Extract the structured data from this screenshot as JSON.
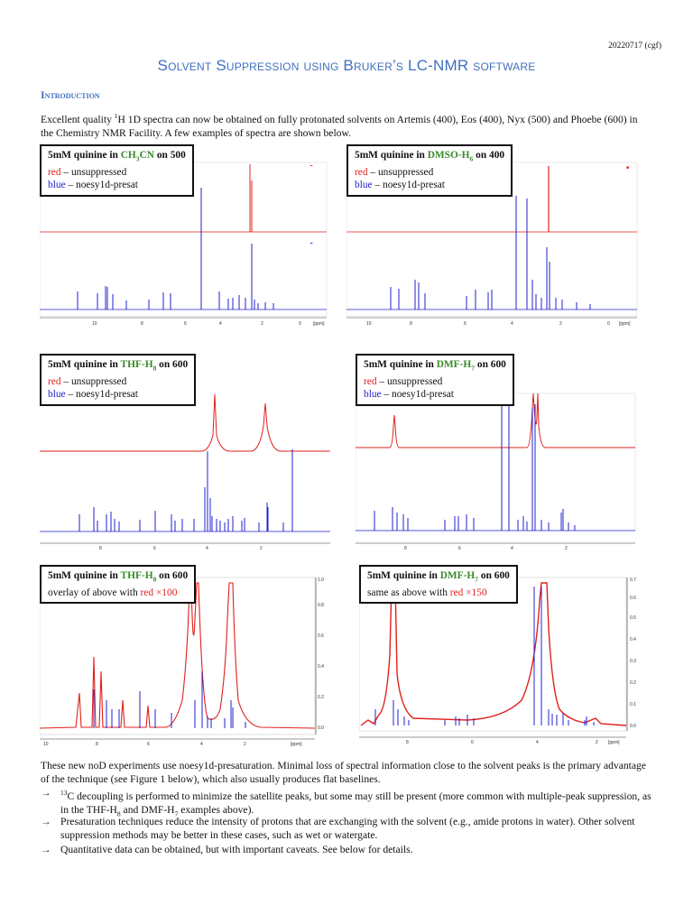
{
  "header": {
    "date": "20220717 (cgf)",
    "title": "Solvent Suppression using Bruker’s LC-NMR software",
    "section": "Introduction"
  },
  "intro": {
    "text_a": "Excellent quality ",
    "sup": "1",
    "text_b": "H 1D spectra can now be obtained on fully protonated solvents on Artemis (400), Eos (400), Nyx (500) and Phoebe (600) in the Chemistry NMR Facility. A few examples of spectra are shown below."
  },
  "colors": {
    "red": "#e0201c",
    "blue": "#2020d0",
    "green": "#3a8a2a",
    "accent": "#3f6fbf"
  },
  "panels": [
    {
      "pre": "5mM quinine in ",
      "solvent": "CH",
      "sub1": "3",
      "solvent2": "CN",
      "sub2": "",
      "post": " on 500",
      "line2_color": "red",
      "line2_rest": " – unsuppressed",
      "line3_color": "blue",
      "line3_rest": " – noesy1d-presat"
    },
    {
      "pre": "5mM quinine in ",
      "solvent": "DMSO-H",
      "sub1": "6",
      "solvent2": "",
      "sub2": "",
      "post": " on 400",
      "line2_color": "red",
      "line2_rest": " – unsuppressed",
      "line3_color": "blue",
      "line3_rest": " – noesy1d-presat"
    },
    {
      "pre": "5mM quinine in ",
      "solvent": "THF-H",
      "sub1": "8",
      "solvent2": "",
      "sub2": "",
      "post": " on 600",
      "line2_color": "red",
      "line2_rest": " – unsuppressed",
      "line3_color": "blue",
      "line3_rest": " – noesy1d-presat"
    },
    {
      "pre": "5mM quinine in ",
      "solvent": "DMF-H",
      "sub1": "7",
      "solvent2": "",
      "sub2": "",
      "post": " on 600",
      "line2_color": "red",
      "line2_rest": " – unsuppressed",
      "line3_color": "blue",
      "line3_rest": " – noesy1d-presat"
    },
    {
      "pre": "5mM quinine in ",
      "solvent": "THF-H",
      "sub1": "8",
      "solvent2": "",
      "sub2": "",
      "post": " on 600",
      "line2_text": "overlay of above with ",
      "line2_red": "red ×100"
    },
    {
      "pre": "5mM quinine in ",
      "solvent": "DMF-H",
      "sub1": "7",
      "solvent2": "",
      "sub2": "",
      "post": " on 600",
      "line2_text": "same as above with ",
      "line2_red": "red ×150"
    }
  ],
  "axes": {
    "p1": {
      "ticks": [
        "10",
        "8",
        "6",
        "4",
        "2",
        "0"
      ],
      "unit": "[ppm]"
    },
    "p2": {
      "ticks": [
        "10",
        "8",
        "6",
        "4",
        "2",
        "0"
      ],
      "unit": "[ppm]"
    },
    "p3": {
      "ticks": [
        "8",
        "6",
        "4",
        "2"
      ]
    },
    "p4": {
      "ticks": [
        "8",
        "6",
        "4",
        "2"
      ]
    },
    "p5": {
      "ticks": [
        "10",
        "8",
        "6",
        "4",
        "2"
      ],
      "unit": "[ppm]",
      "yticks": [
        "0.0",
        "0.2",
        "0.4",
        "0.6",
        "0.8",
        "1.0"
      ]
    },
    "p6": {
      "ticks": [
        "8",
        "6",
        "4",
        "2"
      ],
      "unit": "[ppm]",
      "yticks": [
        "0.0",
        "0.1",
        "0.2",
        "0.3",
        "0.4",
        "0.5",
        "0.6",
        "0.7"
      ]
    }
  },
  "body": {
    "para": "These new noD experiments use noesy1d-presaturation. Minimal loss of spectral information close to the solvent peaks is the primary advantage of the technique (see Figure 1 below), which also usually produces flat baselines.",
    "arrow": "→",
    "b1_sup": "13",
    "b1": "C decoupling is performed to minimize the satellite peaks, but some may still be present (more common with multiple-peak suppression, as in the THF-H",
    "b1_sub1": "8",
    "b1_mid": " and DMF-H",
    "b1_sub2": "7",
    "b1_end": " examples above).",
    "b2": "Presaturation techniques reduce the intensity of protons that are exchanging with the solvent (e.g., amide protons in water). Other solvent suppression methods may be better in these cases, such as wet or watergate.",
    "b3": "Quantitative data can be obtained, but with important caveats. See below for details."
  }
}
